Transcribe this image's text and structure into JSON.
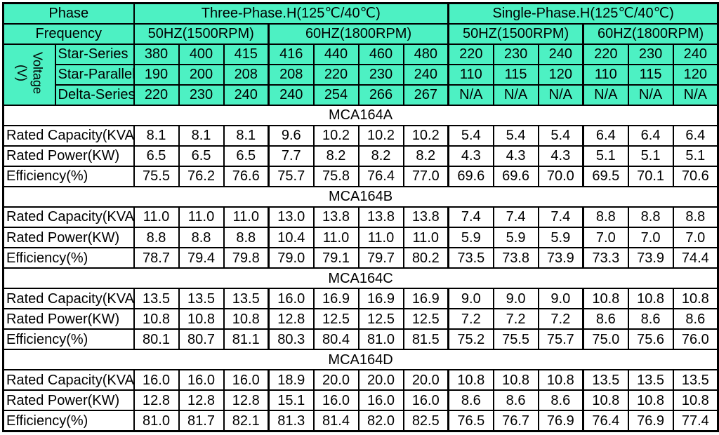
{
  "colors": {
    "header_bg": "#4DF1C3",
    "cell_bg": "#FFFFFF",
    "border": "#000000",
    "text": "#000000"
  },
  "table": {
    "phase_label": "Phase",
    "frequency_label": "Frequency",
    "voltage_label": {
      "line1": "Voltage",
      "line2": "(V)"
    },
    "phase_groups": [
      {
        "label": "Three-Phase.H(125℃/40℃)",
        "span": 7
      },
      {
        "label": "Single-Phase.H(125℃/40℃)",
        "span": 6
      }
    ],
    "frequency_groups": [
      {
        "label": "50HZ(1500RPM)",
        "span": 3
      },
      {
        "label": "60HZ(1800RPM)",
        "span": 4
      },
      {
        "label": "50HZ(1500RPM)",
        "span": 3
      },
      {
        "label": "60HZ(1800RPM)",
        "span": 3
      }
    ],
    "voltage_rows": [
      {
        "label": "Star-Series",
        "values": [
          "380",
          "400",
          "415",
          "416",
          "440",
          "460",
          "480",
          "220",
          "230",
          "240",
          "220",
          "230",
          "240"
        ]
      },
      {
        "label": "Star-Parallel",
        "values": [
          "190",
          "200",
          "208",
          "208",
          "220",
          "230",
          "240",
          "110",
          "115",
          "120",
          "110",
          "115",
          "120"
        ]
      },
      {
        "label": "Delta-Series",
        "values": [
          "220",
          "230",
          "240",
          "240",
          "254",
          "266",
          "267",
          "N/A",
          "N/A",
          "N/A",
          "N/A",
          "N/A",
          "N/A"
        ]
      }
    ],
    "models": [
      {
        "name": "MCA164A",
        "rows": [
          {
            "label": "Rated Capacity(KVA)",
            "values": [
              "8.1",
              "8.1",
              "8.1",
              "9.6",
              "10.2",
              "10.2",
              "10.2",
              "5.4",
              "5.4",
              "5.4",
              "6.4",
              "6.4",
              "6.4"
            ]
          },
          {
            "label": "Rated Power(KW)",
            "values": [
              "6.5",
              "6.5",
              "6.5",
              "7.7",
              "8.2",
              "8.2",
              "8.2",
              "4.3",
              "4.3",
              "4.3",
              "5.1",
              "5.1",
              "5.1"
            ]
          },
          {
            "label": "Efficiency(%)",
            "values": [
              "75.5",
              "76.2",
              "76.6",
              "75.7",
              "75.8",
              "76.4",
              "77.0",
              "69.6",
              "69.6",
              "70.0",
              "69.5",
              "70.1",
              "70.6"
            ]
          }
        ]
      },
      {
        "name": "MCA164B",
        "rows": [
          {
            "label": "Rated Capacity(KVA)",
            "values": [
              "11.0",
              "11.0",
              "11.0",
              "13.0",
              "13.8",
              "13.8",
              "13.8",
              "7.4",
              "7.4",
              "7.4",
              "8.8",
              "8.8",
              "8.8"
            ]
          },
          {
            "label": "Rated Power(KW)",
            "values": [
              "8.8",
              "8.8",
              "8.8",
              "10.4",
              "11.0",
              "11.0",
              "11.0",
              "5.9",
              "5.9",
              "5.9",
              "7.0",
              "7.0",
              "7.0"
            ]
          },
          {
            "label": "Efficiency(%)",
            "values": [
              "78.7",
              "79.4",
              "79.8",
              "79.0",
              "79.1",
              "79.7",
              "80.2",
              "73.5",
              "73.8",
              "73.9",
              "73.3",
              "73.9",
              "74.4"
            ]
          }
        ]
      },
      {
        "name": "MCA164C",
        "rows": [
          {
            "label": "Rated Capacity(KVA)",
            "values": [
              "13.5",
              "13.5",
              "13.5",
              "16.0",
              "16.9",
              "16.9",
              "16.9",
              "9.0",
              "9.0",
              "9.0",
              "10.8",
              "10.8",
              "10.8"
            ]
          },
          {
            "label": "Rated Power(KW)",
            "values": [
              "10.8",
              "10.8",
              "10.8",
              "12.8",
              "12.5",
              "12.5",
              "12.5",
              "7.2",
              "7.2",
              "7.2",
              "8.6",
              "8.6",
              "8.6"
            ]
          },
          {
            "label": "Efficiency(%)",
            "values": [
              "80.1",
              "80.7",
              "81.1",
              "80.3",
              "80.4",
              "81.0",
              "81.5",
              "75.2",
              "75.5",
              "75.7",
              "75.0",
              "75.6",
              "76.0"
            ]
          }
        ]
      },
      {
        "name": "MCA164D",
        "rows": [
          {
            "label": "Rated Capacity(KVA)",
            "values": [
              "16.0",
              "16.0",
              "16.0",
              "18.9",
              "20.0",
              "20.0",
              "20.0",
              "10.8",
              "10.8",
              "10.8",
              "13.5",
              "13.5",
              "13.5"
            ]
          },
          {
            "label": "Rated Power(KW)",
            "values": [
              "12.8",
              "12.8",
              "12.8",
              "15.1",
              "16.0",
              "16.0",
              "16.0",
              "8.6",
              "8.6",
              "8.6",
              "10.8",
              "10.8",
              "10.8"
            ]
          },
          {
            "label": "Efficiency(%)",
            "values": [
              "81.0",
              "81.7",
              "82.1",
              "81.3",
              "81.4",
              "82.0",
              "82.5",
              "76.5",
              "76.7",
              "76.9",
              "76.4",
              "76.9",
              "77.4"
            ]
          }
        ]
      }
    ]
  }
}
